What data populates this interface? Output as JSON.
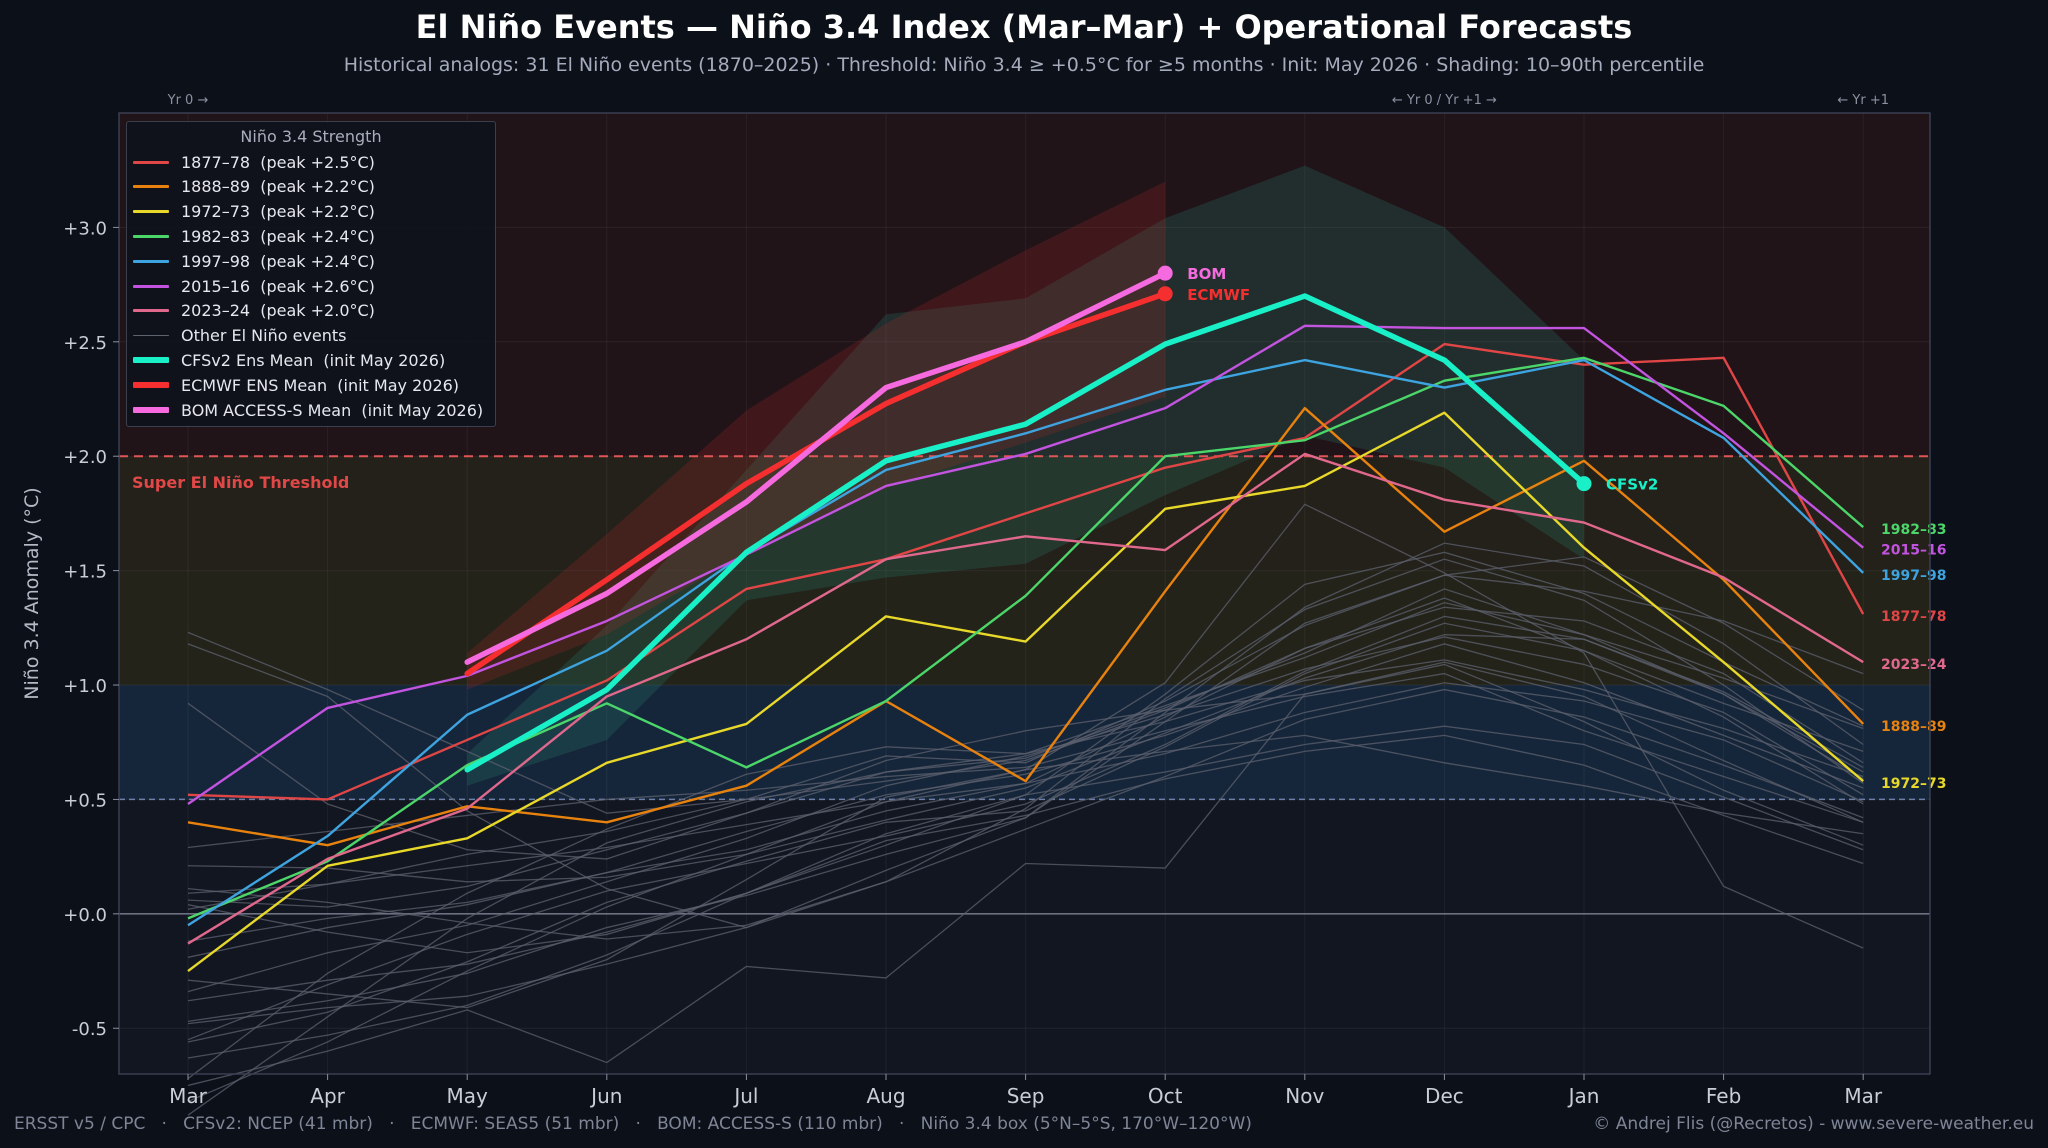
{
  "title": "El Niño Events — Niño 3.4 Index (Mar–Mar) + Operational Forecasts",
  "subtitle": "Historical analogs: 31 El Niño events  (1870–2025)  ·  Threshold: Niño 3.4 ≥ +0.5°C for ≥5 months  ·  Init: May 2026  ·  Shading: 10–90th percentile",
  "footer": {
    "left": "ERSST v5 / CPC   ·   CFSv2: NCEP (41 mbr)   ·   ECMWF: SEAS5 (51 mbr)   ·   BOM: ACCESS-S (110 mbr)   ·   Niño 3.4 box (5°N–5°S, 170°W–120°W)",
    "right": "© Andrej Flis (@Recretos) - www.severe-weather.eu"
  },
  "legend": {
    "title": "Niño 3.4 Strength",
    "other_label": "Other El Niño events"
  },
  "colors": {
    "background": "#0c1018",
    "plot_bg": "#121620",
    "threshold": "#e05555",
    "zero_line": "#6b7180",
    "weak_line": "#6d7fa8",
    "other_events": "#5d626f"
  },
  "chart_data": {
    "type": "line",
    "x": [
      "Mar",
      "Apr",
      "May",
      "Jun",
      "Jul",
      "Aug",
      "Sep",
      "Oct",
      "Nov",
      "Dec",
      "Jan",
      "Feb",
      "Mar"
    ],
    "ylabel": "Niño 3.4 Anomaly (°C)",
    "ylim": [
      -0.7,
      3.5
    ],
    "yticks": [
      -0.5,
      0.0,
      0.5,
      1.0,
      1.5,
      2.0,
      2.5,
      3.0
    ],
    "ytick_labels": [
      "-0.5",
      "+0.0",
      "+0.5",
      "+1.0",
      "+1.5",
      "+2.0",
      "+2.5",
      "+3.0"
    ],
    "grid": true,
    "legend_position": "top-left",
    "top_annotations": [
      {
        "text": "Yr 0 →",
        "x": 0
      },
      {
        "text": "← Yr 0 / Yr +1 →",
        "x": 9
      },
      {
        "text": "← Yr +1",
        "x": 12.0
      }
    ],
    "threshold": {
      "value": 2.0,
      "label": "Super El Niño Threshold"
    },
    "weak_threshold": 0.5,
    "strength_bands": [
      {
        "from": 0.5,
        "to": 1.0,
        "color": "#16263a"
      },
      {
        "from": 1.0,
        "to": 1.5,
        "color": "#23231a"
      },
      {
        "from": 1.5,
        "to": 2.0,
        "color": "#24201a"
      },
      {
        "from": 2.0,
        "to": 3.5,
        "color": "#201419"
      }
    ],
    "highlighted": [
      {
        "name": "1877–78",
        "legend": "1877–78  (peak +2.5°C)",
        "color": "#e04646",
        "values": [
          0.52,
          0.5,
          0.76,
          1.02,
          1.42,
          1.55,
          1.75,
          1.95,
          2.08,
          2.49,
          2.4,
          2.43,
          1.31
        ]
      },
      {
        "name": "1888–89",
        "legend": "1888–89  (peak +2.2°C)",
        "color": "#e8820e",
        "values": [
          0.4,
          0.3,
          0.47,
          0.4,
          0.56,
          0.93,
          0.58,
          1.41,
          2.21,
          1.67,
          1.98,
          1.46,
          0.83
        ]
      },
      {
        "name": "1972–73",
        "legend": "1972–73  (peak +2.2°C)",
        "color": "#e8d82a",
        "values": [
          -0.25,
          0.21,
          0.33,
          0.66,
          0.83,
          1.3,
          1.19,
          1.77,
          1.87,
          2.19,
          1.6,
          1.1,
          0.58
        ]
      },
      {
        "name": "1982–83",
        "legend": "1982–83  (peak +2.4°C)",
        "color": "#4cd66a",
        "values": [
          -0.02,
          0.23,
          0.65,
          0.92,
          0.64,
          0.93,
          1.39,
          2.0,
          2.07,
          2.33,
          2.43,
          2.22,
          1.69
        ]
      },
      {
        "name": "1997–98",
        "legend": "1997–98  (peak +2.4°C)",
        "color": "#3ea4e0",
        "values": [
          -0.05,
          0.34,
          0.87,
          1.15,
          1.58,
          1.94,
          2.1,
          2.29,
          2.42,
          2.3,
          2.42,
          2.08,
          1.49
        ]
      },
      {
        "name": "2015–16",
        "legend": "2015–16  (peak +2.6°C)",
        "color": "#c254e0",
        "values": [
          0.48,
          0.9,
          1.04,
          1.28,
          1.57,
          1.87,
          2.01,
          2.21,
          2.57,
          2.56,
          2.56,
          2.1,
          1.6
        ]
      },
      {
        "name": "2023–24",
        "legend": "2023–24  (peak +2.0°C)",
        "color": "#e0688c",
        "values": [
          -0.13,
          0.24,
          0.46,
          0.95,
          1.2,
          1.55,
          1.65,
          1.59,
          2.01,
          1.81,
          1.71,
          1.47,
          1.1
        ]
      }
    ],
    "forecasts": [
      {
        "name": "CFSv2",
        "legend": "CFSv2 Ens Mean  (init May 2026)",
        "color": "#19f0c7",
        "start": 2,
        "values": [
          0.63,
          0.98,
          1.58,
          1.98,
          2.14,
          2.49,
          2.7,
          2.42,
          1.88
        ],
        "band_low": [
          0.56,
          0.76,
          1.37,
          1.47,
          1.53,
          1.83,
          2.09,
          1.95,
          1.55
        ],
        "band_high": [
          0.7,
          1.26,
          1.94,
          2.62,
          2.69,
          3.04,
          3.27,
          3.0,
          2.42
        ]
      },
      {
        "name": "ECMWF",
        "legend": "ECMWF ENS Mean  (init May 2026)",
        "color": "#f52f2f",
        "start": 2,
        "values": [
          1.05,
          1.46,
          1.88,
          2.23,
          2.5,
          2.71
        ],
        "band_low": [
          0.98,
          1.22,
          1.58,
          1.86,
          2.06,
          2.26
        ],
        "band_high": [
          1.14,
          1.66,
          2.2,
          2.58,
          2.9,
          3.2
        ]
      },
      {
        "name": "BOM",
        "legend": "BOM ACCESS-S Mean  (init May 2026)",
        "color": "#f56bdf",
        "start": 2,
        "values": [
          1.1,
          1.4,
          1.8,
          2.3,
          2.5,
          2.8
        ]
      }
    ],
    "other_events": [
      [
        1.23,
        0.98,
        0.71,
        0.44,
        0.5,
        0.58,
        0.67,
        0.89,
        1.16,
        1.38,
        1.15,
        0.86,
        0.48
      ],
      [
        1.18,
        0.95,
        0.45,
        0.11,
        -0.06,
        0.14,
        0.46,
        0.94,
        1.33,
        1.55,
        1.37,
        1.0,
        0.57
      ],
      [
        0.92,
        0.48,
        0.28,
        0.24,
        0.44,
        0.67,
        0.8,
        0.89,
        0.96,
        1.09,
        0.84,
        0.54,
        0.3
      ],
      [
        -0.72,
        -0.26,
        0.09,
        0.37,
        0.61,
        0.73,
        0.7,
        0.84,
        1.02,
        1.11,
        0.98,
        0.81,
        0.6
      ],
      [
        -0.56,
        -0.43,
        -0.21,
        0.05,
        0.23,
        0.4,
        0.45,
        0.73,
        1.05,
        1.27,
        1.15,
        0.92,
        0.71
      ],
      [
        -0.34,
        -0.17,
        -0.05,
        0.14,
        0.33,
        0.56,
        0.69,
        0.87,
        1.07,
        1.21,
        1.09,
        0.88,
        0.52
      ],
      [
        -0.12,
        -0.02,
        0.05,
        0.18,
        0.36,
        0.52,
        0.61,
        0.78,
        0.99,
        1.18,
        1.01,
        0.78,
        0.55
      ],
      [
        0.06,
        0.03,
        0.12,
        0.28,
        0.44,
        0.62,
        0.68,
        0.9,
        1.14,
        1.42,
        1.22,
        0.96,
        0.62
      ],
      [
        0.29,
        0.36,
        0.43,
        0.5,
        0.54,
        0.6,
        0.64,
        0.8,
        0.95,
        1.05,
        0.8,
        0.6,
        0.4
      ],
      [
        -0.47,
        -0.38,
        -0.26,
        -0.06,
        0.08,
        0.26,
        0.42,
        0.88,
        1.34,
        1.62,
        1.52,
        1.18,
        0.74
      ],
      [
        -0.63,
        -0.53,
        -0.4,
        -0.18,
        0.09,
        0.3,
        0.52,
        0.96,
        1.44,
        1.58,
        1.4,
        1.1,
        0.82
      ],
      [
        -0.55,
        -0.31,
        -0.09,
        0.1,
        0.22,
        0.34,
        0.48,
        0.74,
        1.06,
        1.3,
        1.2,
        0.97,
        0.64
      ],
      [
        0.11,
        0.05,
        -0.04,
        -0.11,
        -0.05,
        0.14,
        0.37,
        0.6,
        0.85,
        0.98,
        0.86,
        0.65,
        0.42
      ],
      [
        0.04,
        -0.08,
        -0.17,
        -0.09,
        0.09,
        0.35,
        0.52,
        0.62,
        0.74,
        0.82,
        0.74,
        0.51,
        0.28
      ],
      [
        -0.29,
        -0.35,
        -0.41,
        -0.2,
        0.15,
        0.51,
        0.63,
        0.71,
        0.78,
        0.66,
        0.56,
        0.44,
        0.35
      ],
      [
        0.02,
        0.13,
        0.26,
        0.36,
        0.5,
        0.69,
        0.66,
        0.93,
        1.26,
        1.48,
        1.56,
        1.27,
        0.89
      ],
      [
        -0.19,
        -0.06,
        0.04,
        0.18,
        0.28,
        0.45,
        0.57,
        0.86,
        1.16,
        1.34,
        1.28,
        1.05,
        0.66
      ],
      [
        0.21,
        0.2,
        0.14,
        0.16,
        0.26,
        0.41,
        0.55,
        0.79,
        1.03,
        1.22,
        1.2,
        0.96,
        0.59
      ],
      [
        -0.48,
        -0.41,
        -0.36,
        -0.22,
        -0.06,
        0.19,
        0.42,
        0.84,
        1.27,
        1.48,
        1.41,
        1.28,
        1.05
      ],
      [
        -0.82,
        -0.56,
        -0.25,
        0.03,
        0.26,
        0.49,
        0.63,
        1.01,
        1.79,
        1.49,
        1.14,
        0.12,
        -0.15
      ],
      [
        -0.88,
        -0.45,
        -0.02,
        0.31,
        0.49,
        0.62,
        0.7,
        0.91,
        1.12,
        1.36,
        1.22,
        1.03,
        0.81
      ],
      [
        -0.38,
        -0.29,
        -0.22,
        -0.08,
        0.09,
        0.32,
        0.43,
        0.59,
        0.71,
        0.78,
        0.65,
        0.43,
        0.22
      ],
      [
        0.09,
        0.13,
        0.21,
        0.29,
        0.39,
        0.49,
        0.57,
        0.7,
        0.88,
        1.01,
        0.93,
        0.76,
        0.49
      ],
      [
        -0.75,
        -0.6,
        -0.42,
        -0.65,
        -0.23,
        -0.28,
        0.22,
        0.2,
        0.96,
        1.1,
        0.95,
        0.67,
        0.4
      ]
    ],
    "right_labels": [
      {
        "text": "1982–83",
        "y": 1.69,
        "color": "#4cd66a"
      },
      {
        "text": "2015–16",
        "y": 1.6,
        "color": "#c254e0"
      },
      {
        "text": "1997–98",
        "y": 1.49,
        "color": "#3ea4e0"
      },
      {
        "text": "1877–78",
        "y": 1.31,
        "color": "#e04646"
      },
      {
        "text": "2023–24",
        "y": 1.1,
        "color": "#e0688c"
      },
      {
        "text": "1888–89",
        "y": 0.83,
        "color": "#e8820e"
      },
      {
        "text": "1972–73",
        "y": 0.58,
        "color": "#e8d82a"
      }
    ]
  }
}
